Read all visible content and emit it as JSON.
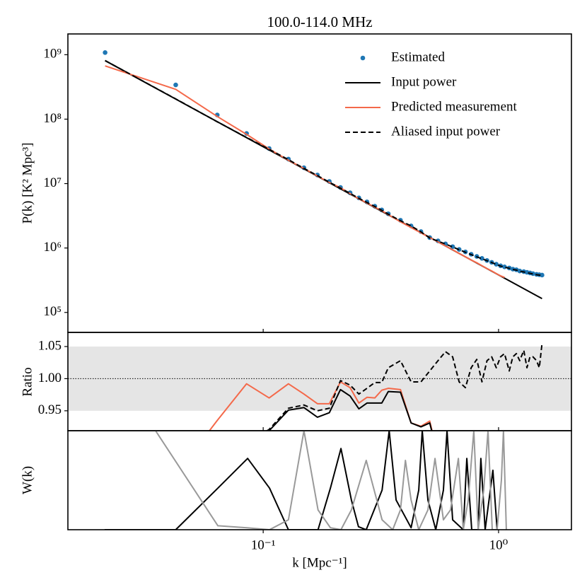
{
  "chart_data": [
    {
      "type": "line",
      "title": "100.0-114.0 MHz",
      "ylabel": "P(k) [K² Mpc³]",
      "yscale": "log",
      "ylim": [
        49000,
        2100000000
      ],
      "yticks": [
        {
          "value": 100000,
          "label": "10⁵"
        },
        {
          "value": 1000000,
          "label": "10⁶"
        },
        {
          "value": 10000000,
          "label": "10⁷"
        },
        {
          "value": 100000000,
          "label": "10⁸"
        },
        {
          "value": 1000000000,
          "label": "10⁹"
        }
      ],
      "legend": "upper right",
      "series": [
        {
          "name": "Estimated",
          "color": "#1f77b4",
          "style": "points",
          "x": [
            0.0213,
            0.0425,
            0.0638,
            0.085,
            0.106,
            0.128,
            0.149,
            0.17,
            0.191,
            0.213,
            0.234,
            0.255,
            0.276,
            0.298,
            0.319,
            0.34,
            0.383,
            0.425,
            0.468,
            0.51,
            0.553,
            0.595,
            0.638,
            0.68,
            0.723,
            0.765,
            0.808,
            0.85,
            0.893,
            0.935,
            0.978,
            1.02,
            1.06,
            1.11,
            1.15,
            1.19,
            1.23,
            1.28,
            1.32,
            1.36,
            1.4,
            1.45,
            1.49,
            1.53
          ],
          "values": [
            1080000000,
            340000000,
            116000000,
            60000000,
            35000000,
            24000000,
            17600000,
            13600000,
            10800000,
            8700000,
            7200000,
            6000000,
            5200000,
            4450000,
            3900000,
            3400000,
            2700000,
            2200000,
            1800000,
            1450000,
            1290000,
            1160000,
            1050000,
            950000,
            870000,
            800000,
            740000,
            690000,
            640000,
            600000,
            560000,
            530000,
            510000,
            490000,
            470000,
            460000,
            440000,
            430000,
            420000,
            410000,
            400000,
            390000,
            385000,
            380000
          ]
        },
        {
          "name": "Input power",
          "color": "#000000",
          "style": "solid",
          "x": [
            0.0213,
            1.53
          ],
          "values": [
            810000000,
            164000
          ]
        },
        {
          "name": "Predicted measurement",
          "color": "#f4694a",
          "style": "solid",
          "x": [
            0.0213,
            0.0425,
            0.0638,
            0.085,
            0.106,
            0.128,
            0.149,
            0.17,
            0.191,
            0.213,
            0.234,
            0.255,
            0.276,
            0.298,
            0.319,
            0.34,
            0.383,
            0.425,
            0.468,
            0.51,
            0.553,
            0.595,
            0.638,
            0.68,
            0.723,
            0.765,
            0.808,
            0.85,
            0.893,
            0.935,
            0.978,
            1.02,
            1.06
          ],
          "values": [
            670000000,
            290000000,
            110000000,
            58000000,
            34500000,
            23000000,
            17200000,
            13100000,
            10400000,
            8600000,
            7000000,
            5800000,
            5000000,
            4300000,
            3800000,
            3300000,
            2550000,
            2080000,
            1720000,
            1450000,
            1245000,
            1075000,
            940000,
            820000,
            730000,
            650000,
            590000,
            530000,
            480000,
            440000,
            400000,
            370000,
            350000
          ]
        },
        {
          "name": "Aliased input power",
          "color": "#000000",
          "style": "dashed",
          "x": [
            0.0213,
            0.0425,
            0.0638,
            0.085,
            0.106,
            0.128,
            0.149,
            0.17,
            0.191,
            0.213,
            0.234,
            0.255,
            0.276,
            0.298,
            0.319,
            0.34,
            0.383,
            0.425,
            0.468,
            0.51,
            0.553,
            0.595,
            0.638,
            0.68,
            0.723,
            0.765,
            0.808,
            0.85,
            0.893,
            0.935,
            0.978,
            1.02,
            1.06,
            1.11,
            1.15,
            1.19,
            1.23,
            1.28,
            1.32,
            1.36,
            1.4,
            1.45,
            1.49,
            1.53
          ],
          "values": [
            810000000,
            206000000,
            91000000,
            52000000,
            34000000,
            23500000,
            17200000,
            13300000,
            10500000,
            8500000,
            7050000,
            5900000,
            5100000,
            4400000,
            3850000,
            3350000,
            2650000,
            2200000,
            1780000,
            1430000,
            1280000,
            1150000,
            1040000,
            940000,
            860000,
            790000,
            730000,
            680000,
            635000,
            595000,
            555000,
            525000,
            505000,
            485000,
            465000,
            455000,
            435000,
            425000,
            415000,
            405000,
            395000,
            385000,
            380000,
            375000
          ]
        }
      ]
    },
    {
      "type": "line",
      "ylabel": "Ratio",
      "ylim": [
        0.919,
        1.072
      ],
      "yticks": [
        0.95,
        {
          "value": 1,
          "label": "1.00"
        },
        1.05
      ],
      "band": [
        0.95,
        1.05
      ],
      "band_color": "#e5e5e5",
      "reference": 1,
      "series": [
        {
          "color": "#f4694a",
          "style": "solid",
          "x": [
            0.0425,
            0.0638,
            0.085,
            0.106,
            0.128,
            0.149,
            0.17,
            0.191,
            0.213,
            0.234,
            0.255,
            0.276,
            0.298,
            0.319,
            0.34,
            0.383,
            0.425,
            0.468,
            0.51,
            0.553
          ],
          "values": [
            0.85,
            0.935,
            0.992,
            0.97,
            0.992,
            0.976,
            0.961,
            0.961,
            0.995,
            0.986,
            0.962,
            0.971,
            0.97,
            0.982,
            0.985,
            0.983,
            0.931,
            0.926,
            0.934,
            0.88
          ]
        },
        {
          "color": "#000000",
          "style": "solid",
          "x": [
            0.085,
            0.106,
            0.128,
            0.149,
            0.17,
            0.191,
            0.213,
            0.234,
            0.255,
            0.276,
            0.298,
            0.319,
            0.34,
            0.383,
            0.425,
            0.468,
            0.51,
            0.553
          ],
          "values": [
            0.9,
            0.919,
            0.951,
            0.955,
            0.94,
            0.947,
            0.983,
            0.973,
            0.953,
            0.962,
            0.962,
            0.962,
            0.98,
            0.979,
            0.931,
            0.925,
            0.931,
            0.88
          ]
        },
        {
          "color": "#000000",
          "style": "dashed",
          "x": [
            0.085,
            0.106,
            0.128,
            0.149,
            0.17,
            0.191,
            0.213,
            0.234,
            0.255,
            0.276,
            0.298,
            0.319,
            0.34,
            0.383,
            0.425,
            0.468,
            0.51,
            0.553,
            0.595,
            0.638,
            0.68,
            0.723,
            0.765,
            0.808,
            0.85,
            0.893,
            0.935,
            0.978,
            1.02,
            1.06,
            1.11,
            1.15,
            1.19,
            1.23,
            1.28,
            1.32,
            1.36,
            1.4,
            1.45,
            1.49,
            1.53
          ],
          "values": [
            0.9,
            0.921,
            0.954,
            0.959,
            0.95,
            0.954,
            0.997,
            0.99,
            0.976,
            0.985,
            0.994,
            0.994,
            1.017,
            1.028,
            0.995,
            0.995,
            1.012,
            1.028,
            1.042,
            1.034,
            0.995,
            0.986,
            1.017,
            1.03,
            0.995,
            1.028,
            1.034,
            1.017,
            1.034,
            1.039,
            1.012,
            1.034,
            1.039,
            1.028,
            1.044,
            1.017,
            1.034,
            1.034,
            1.028,
            1.017,
            1.055
          ]
        }
      ]
    },
    {
      "type": "line",
      "ylabel": "W(k)",
      "xlabel": "k [Mpc⁻¹]",
      "xscale": "log",
      "xlim": [
        0.0148,
        2.04
      ],
      "xticks": [
        {
          "value": 0.1,
          "label": "10⁻¹"
        },
        {
          "value": 1,
          "label": "10⁰"
        }
      ],
      "ylim": [
        0,
        1
      ],
      "series": [
        {
          "color": "#000000",
          "style": "solid",
          "x": [
            0.0212,
            0.0425,
            0.0642,
            0.0859,
            0.1064,
            0.128,
            0.171,
            0.193,
            0.214,
            0.237,
            0.254,
            0.274,
            0.32,
            0.343,
            0.367,
            0.425,
            0.458,
            0.474,
            0.501,
            0.541,
            0.583,
            0.604,
            0.638,
            0.708,
            0.733,
            0.769,
            0.819,
            0.841,
            0.877,
            0.946,
            0.986
          ],
          "values": [
            0,
            0,
            0.42,
            0.72,
            0.42,
            0,
            0,
            0.42,
            0.82,
            0.3,
            0.03,
            0,
            0.4,
            1.0,
            0.3,
            0.02,
            0.4,
            1.0,
            0.3,
            0,
            0.4,
            1.0,
            0.1,
            0,
            0.72,
            0,
            0,
            0.72,
            0,
            0.6,
            0
          ]
        },
        {
          "color": "#999999",
          "style": "solid",
          "x": [
            0.0338,
            0.0642,
            0.0853,
            0.1064,
            0.128,
            0.149,
            0.171,
            0.193,
            0.214,
            0.237,
            0.274,
            0.32,
            0.355,
            0.383,
            0.402,
            0.425,
            0.458,
            0.501,
            0.537,
            0.583,
            0.625,
            0.675,
            0.708,
            0.743,
            0.785,
            0.819,
            0.865,
            0.902,
            0.94,
            0.986,
            1.028,
            1.049,
            1.079
          ],
          "values": [
            1.05,
            0.04,
            0.02,
            0,
            0.1,
            1.0,
            0.2,
            0.02,
            0,
            0.2,
            0.7,
            0.1,
            0,
            0.2,
            0.7,
            0.3,
            0,
            0.2,
            0.72,
            0.1,
            0.2,
            0.72,
            0,
            0.3,
            1.0,
            0,
            0.4,
            1.0,
            0,
            0,
            0.5,
            1.0,
            0
          ]
        }
      ]
    }
  ]
}
